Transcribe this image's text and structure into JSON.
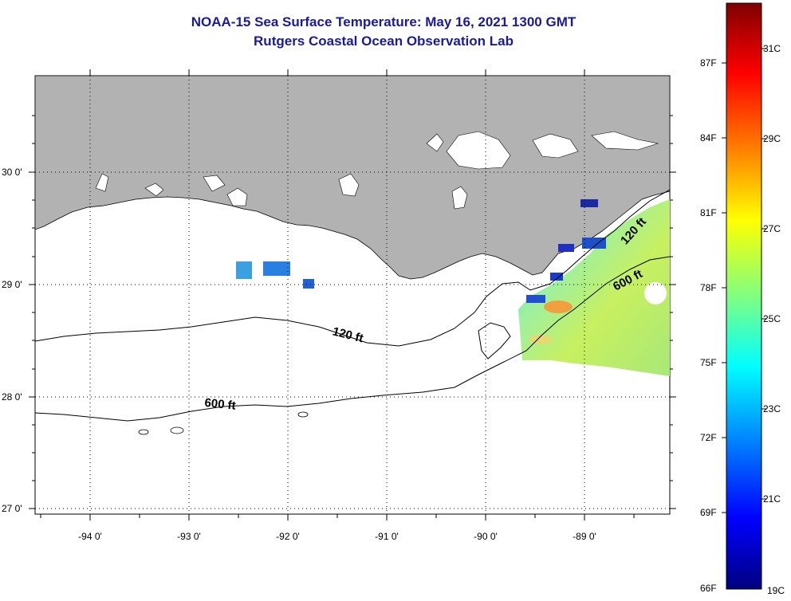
{
  "header": {
    "title": "NOAA-15 Sea Surface Temperature:  May 16, 2021 1300 GMT",
    "subtitle": "Rutgers Coastal Ocean Observation Lab"
  },
  "map": {
    "lat_labels": [
      "30 0'",
      "29 0'",
      "28 0'",
      "27 0'"
    ],
    "lon_labels": [
      "-94 0'",
      "-93 0'",
      "-92 0'",
      "-91 0'",
      "-90 0'",
      "-89 0'"
    ],
    "contour_labels": {
      "shelf_120": "120 ft",
      "shelf_600": "600 ft",
      "east_120": "120 ft",
      "east_600": "600 ft"
    },
    "colors": {
      "land": "#b2b2b2",
      "water": "#ffffff",
      "grid": "#000000"
    }
  },
  "colorbar": {
    "fahrenheit_labels": [
      "87F",
      "84F",
      "81F",
      "78F",
      "75F",
      "72F",
      "69F",
      "66F"
    ],
    "celsius_labels": [
      "31C",
      "29C",
      "27C",
      "25C",
      "23C",
      "21C",
      "19C"
    ],
    "gradient_stops": [
      "#7f0000",
      "#ff0000",
      "#ff8000",
      "#ffff00",
      "#80ff80",
      "#00ffff",
      "#0080ff",
      "#0000ff",
      "#00007f"
    ]
  }
}
